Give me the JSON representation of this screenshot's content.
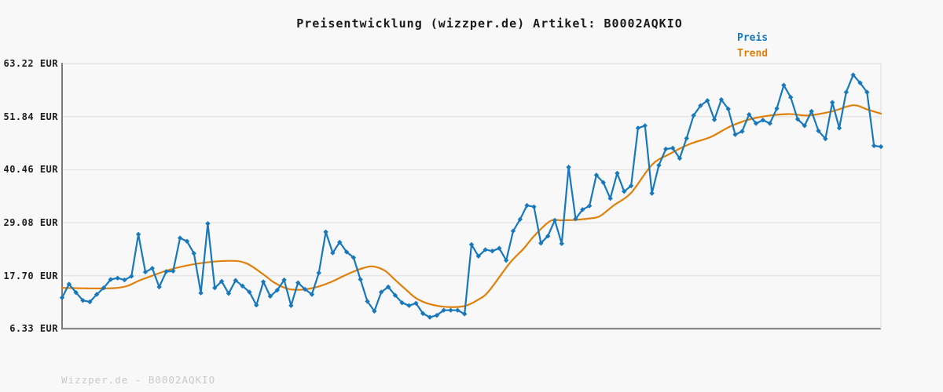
{
  "title": "Preisentwicklung (wizzper.de) Artikel: B0002AQKIO",
  "footer": "Wizzper.de - B0002AQKIO",
  "legend": [
    {
      "label": "Preis",
      "color": "#1878bc"
    },
    {
      "label": "Trend",
      "color": "#e0800a"
    }
  ],
  "y_axis": {
    "tick_labels": [
      "63.22 EUR",
      "51.84 EUR",
      "40.46 EUR",
      "29.08 EUR",
      "17.70 EUR",
      "6.33 EUR"
    ],
    "tick_values": [
      63.22,
      51.84,
      40.46,
      29.08,
      17.7,
      6.33
    ]
  },
  "colors": {
    "background": "#f8f8f8",
    "grid": "#e3e3e3",
    "axis": "#7a7a7a",
    "title_text": "#1a1a1a",
    "tick_text": "#1d1d1d",
    "watermark_text": "#c9c9c9",
    "preis": "#1878bc",
    "trend": "#e0800a"
  },
  "chart_data": {
    "type": "line",
    "title": "Preisentwicklung (wizzper.de) Artikel: B0002AQKIO",
    "ylabel": "EUR",
    "ylim": [
      6.33,
      63.22
    ],
    "grid": true,
    "legend_position": "top-right",
    "x_unit": "time (unlabeled axis)",
    "series": [
      {
        "name": "Preis",
        "color": "#1878bc",
        "marker": "diamond",
        "values": [
          13.0,
          15.9,
          14.1,
          12.4,
          12.1,
          13.7,
          15.1,
          16.9,
          17.2,
          16.8,
          17.6,
          26.6,
          18.5,
          19.3,
          15.3,
          18.6,
          18.7,
          25.8,
          25.1,
          22.5,
          14.0,
          28.9,
          15.1,
          16.5,
          13.9,
          16.7,
          15.5,
          14.2,
          11.4,
          16.4,
          13.3,
          14.6,
          16.8,
          11.3,
          16.2,
          14.8,
          13.7,
          18.3,
          27.1,
          22.6,
          24.9,
          22.8,
          21.6,
          16.9,
          12.2,
          10.1,
          14.2,
          15.3,
          13.5,
          11.9,
          11.3,
          11.8,
          9.6,
          8.8,
          9.2,
          10.3,
          10.3,
          10.3,
          9.5,
          24.4,
          21.9,
          23.3,
          23.0,
          23.6,
          21.0,
          27.3,
          29.8,
          32.8,
          32.5,
          24.7,
          26.2,
          29.6,
          24.6,
          41.0,
          29.9,
          31.9,
          32.7,
          39.3,
          37.7,
          34.3,
          39.7,
          35.8,
          37.0,
          49.4,
          49.9,
          35.4,
          41.4,
          44.9,
          45.1,
          42.9,
          47.2,
          52.1,
          54.2,
          55.3,
          51.2,
          55.5,
          53.5,
          48.0,
          48.7,
          52.3,
          50.4,
          51.1,
          50.4,
          53.6,
          58.6,
          56.0,
          51.3,
          49.9,
          53.0,
          48.8,
          47.1,
          54.9,
          49.4,
          57.1,
          60.8,
          59.1,
          57.1,
          45.6,
          45.4
        ]
      },
      {
        "name": "Trend",
        "color": "#e0800a",
        "marker": "none",
        "anchor_points": [
          [
            0,
            15.1
          ],
          [
            8,
            15.1
          ],
          [
            11.5,
            16.9
          ],
          [
            15.5,
            19.0
          ],
          [
            19.5,
            20.3
          ],
          [
            24,
            20.9
          ],
          [
            26.5,
            20.4
          ],
          [
            29,
            18.0
          ],
          [
            30.5,
            16.3
          ],
          [
            32.5,
            14.9
          ],
          [
            34.5,
            14.7
          ],
          [
            36.5,
            15.2
          ],
          [
            38.5,
            16.2
          ],
          [
            40.5,
            17.6
          ],
          [
            42,
            18.6
          ],
          [
            43.5,
            19.4
          ],
          [
            44.8,
            19.7
          ],
          [
            46.5,
            18.8
          ],
          [
            48,
            16.8
          ],
          [
            49.5,
            14.8
          ],
          [
            51,
            12.9
          ],
          [
            53,
            11.6
          ],
          [
            55.5,
            11.0
          ],
          [
            58,
            11.2
          ],
          [
            60,
            12.6
          ],
          [
            61.5,
            14.4
          ],
          [
            64.5,
            20.4
          ],
          [
            66.5,
            23.5
          ],
          [
            68,
            26.2
          ],
          [
            70.3,
            29.4
          ],
          [
            72,
            29.6
          ],
          [
            74,
            29.7
          ],
          [
            76,
            30.0
          ],
          [
            77.5,
            30.5
          ],
          [
            79.5,
            32.8
          ],
          [
            82,
            35.5
          ],
          [
            85,
            41.5
          ],
          [
            87.5,
            43.8
          ],
          [
            90.5,
            46.0
          ],
          [
            93.5,
            47.5
          ],
          [
            96.5,
            49.9
          ],
          [
            100,
            51.6
          ],
          [
            104.5,
            52.4
          ],
          [
            107.5,
            52.1
          ],
          [
            111,
            53.0
          ],
          [
            114,
            54.3
          ],
          [
            116,
            53.4
          ],
          [
            118,
            52.5
          ]
        ]
      }
    ]
  }
}
